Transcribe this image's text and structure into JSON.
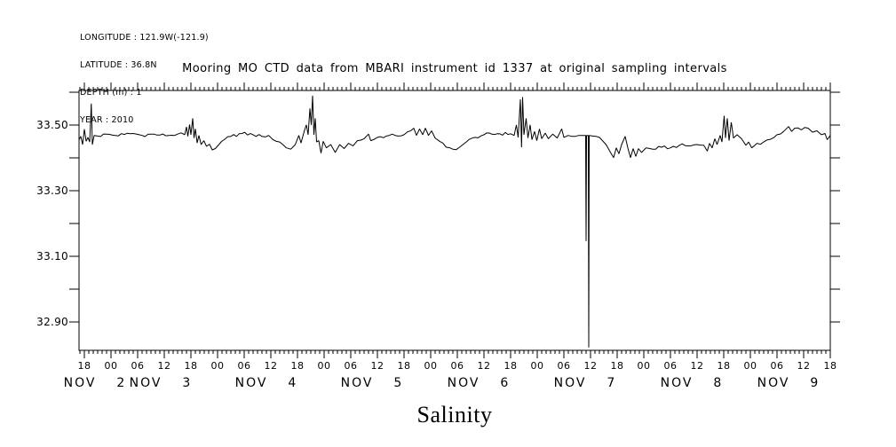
{
  "page": {
    "background": "#ffffff",
    "foreground": "#000000"
  },
  "header_info": {
    "lines": [
      "LONGITUDE : 121.9W(-121.9)",
      "LATITUDE : 36.8N",
      "DEPTH (m) : 1",
      "YEAR : 2010"
    ]
  },
  "title": "Mooring MO CTD data from MBARI instrument id 1337 at original sampling intervals",
  "bottom_label": "Salinity",
  "chart_data": {
    "type": "line",
    "title": "Mooring MO CTD data from MBARI instrument id 1337 at original sampling intervals",
    "xlabel": "Salinity",
    "ylabel": "",
    "grid": false,
    "legend": "none",
    "line_color": "#000000",
    "noise_amplitude": 0.005,
    "x_axis": {
      "unit": "hours since 2010-11-02 00:00",
      "range": [
        16.8,
        186
      ],
      "major_tick_hours": 6,
      "minor_tick_hours": 1,
      "hour_tick_labels": [
        "18",
        "00",
        "06",
        "12"
      ],
      "date_labels": [
        {
          "label": "NOV 2",
          "t": 20.4
        },
        {
          "label": "NOV 3",
          "t": 35.2
        },
        {
          "label": "NOV 4",
          "t": 59.0
        },
        {
          "label": "NOV 5",
          "t": 82.8
        },
        {
          "label": "NOV 6",
          "t": 106.8
        },
        {
          "label": "NOV 7",
          "t": 130.8
        },
        {
          "label": "NOV 8",
          "t": 154.8
        },
        {
          "label": "NOV 9",
          "t": 176.6
        }
      ]
    },
    "y_axis": {
      "range": [
        32.813,
        33.605
      ],
      "tick_step": 0.1,
      "labeled_ticks": [
        33.5,
        33.3,
        33.1,
        32.9
      ]
    },
    "series": [
      {
        "name": "Salinity",
        "points": [
          [
            16.8,
            33.455
          ],
          [
            17.2,
            33.465
          ],
          [
            17.6,
            33.44
          ],
          [
            18,
            33.487
          ],
          [
            18.4,
            33.45
          ],
          [
            18.8,
            33.462
          ],
          [
            19.2,
            33.448
          ],
          [
            19.55,
            33.565
          ],
          [
            19.8,
            33.44
          ],
          [
            20.2,
            33.468
          ],
          [
            21,
            33.466
          ],
          [
            23,
            33.472
          ],
          [
            25,
            33.468
          ],
          [
            27,
            33.471
          ],
          [
            29,
            33.474
          ],
          [
            31,
            33.468
          ],
          [
            33,
            33.472
          ],
          [
            35,
            33.469
          ],
          [
            37,
            33.468
          ],
          [
            39,
            33.472
          ],
          [
            40.6,
            33.47
          ],
          [
            41,
            33.494
          ],
          [
            41.3,
            33.465
          ],
          [
            41.7,
            33.501
          ],
          [
            42,
            33.47
          ],
          [
            42.4,
            33.52
          ],
          [
            42.7,
            33.46
          ],
          [
            43,
            33.488
          ],
          [
            43.4,
            33.445
          ],
          [
            43.8,
            33.468
          ],
          [
            44.3,
            33.44
          ],
          [
            44.9,
            33.452
          ],
          [
            45.5,
            33.435
          ],
          [
            46.2,
            33.441
          ],
          [
            46.8,
            33.424
          ],
          [
            47.5,
            33.428
          ],
          [
            48.3,
            33.44
          ],
          [
            49.5,
            33.455
          ],
          [
            51,
            33.465
          ],
          [
            53.5,
            33.474
          ],
          [
            56,
            33.47
          ],
          [
            58,
            33.465
          ],
          [
            59.5,
            33.468
          ],
          [
            60.5,
            33.455
          ],
          [
            62,
            33.448
          ],
          [
            63.5,
            33.43
          ],
          [
            64.5,
            33.426
          ],
          [
            65.5,
            33.44
          ],
          [
            66.3,
            33.468
          ],
          [
            66.8,
            33.445
          ],
          [
            67.5,
            33.48
          ],
          [
            68,
            33.5
          ],
          [
            68.4,
            33.47
          ],
          [
            68.8,
            33.55
          ],
          [
            69.1,
            33.5
          ],
          [
            69.4,
            33.589
          ],
          [
            69.7,
            33.47
          ],
          [
            70,
            33.52
          ],
          [
            70.3,
            33.448
          ],
          [
            70.8,
            33.452
          ],
          [
            71.3,
            33.414
          ],
          [
            71.8,
            33.45
          ],
          [
            72.5,
            33.43
          ],
          [
            73.5,
            33.44
          ],
          [
            74.5,
            33.416
          ],
          [
            75.5,
            33.44
          ],
          [
            76.5,
            33.428
          ],
          [
            77.5,
            33.444
          ],
          [
            78.5,
            33.436
          ],
          [
            79.5,
            33.452
          ],
          [
            81,
            33.458
          ],
          [
            82,
            33.472
          ],
          [
            82.5,
            33.452
          ],
          [
            84,
            33.462
          ],
          [
            86,
            33.466
          ],
          [
            88,
            33.468
          ],
          [
            90,
            33.47
          ],
          [
            91.5,
            33.482
          ],
          [
            92.2,
            33.49
          ],
          [
            92.8,
            33.468
          ],
          [
            93.5,
            33.488
          ],
          [
            94.2,
            33.47
          ],
          [
            94.8,
            33.49
          ],
          [
            95.5,
            33.468
          ],
          [
            96.2,
            33.482
          ],
          [
            97,
            33.46
          ],
          [
            98,
            33.45
          ],
          [
            99.5,
            33.432
          ],
          [
            101,
            33.426
          ],
          [
            102.5,
            33.432
          ],
          [
            104,
            33.448
          ],
          [
            106,
            33.462
          ],
          [
            108,
            33.47
          ],
          [
            111,
            33.473
          ],
          [
            114,
            33.473
          ],
          [
            114.8,
            33.468
          ],
          [
            115.3,
            33.5
          ],
          [
            115.7,
            33.462
          ],
          [
            116.2,
            33.578
          ],
          [
            116.45,
            33.432
          ],
          [
            116.7,
            33.585
          ],
          [
            117,
            33.47
          ],
          [
            117.5,
            33.52
          ],
          [
            117.9,
            33.46
          ],
          [
            118.4,
            33.5
          ],
          [
            118.8,
            33.455
          ],
          [
            119.4,
            33.48
          ],
          [
            119.9,
            33.452
          ],
          [
            120.5,
            33.488
          ],
          [
            121,
            33.458
          ],
          [
            121.8,
            33.475
          ],
          [
            122.5,
            33.458
          ],
          [
            123.5,
            33.472
          ],
          [
            124.5,
            33.46
          ],
          [
            125.5,
            33.488
          ],
          [
            126,
            33.462
          ],
          [
            127,
            33.468
          ],
          [
            128.5,
            33.465
          ],
          [
            130,
            33.468
          ],
          [
            130.9,
            33.468
          ],
          [
            131,
            33.146
          ],
          [
            131.1,
            33.468
          ],
          [
            131.5,
            33.468
          ],
          [
            131.6,
            32.822
          ],
          [
            131.7,
            33.468
          ],
          [
            132.5,
            33.466
          ],
          [
            134,
            33.462
          ],
          [
            135.5,
            33.44
          ],
          [
            136.5,
            33.416
          ],
          [
            137.2,
            33.4
          ],
          [
            137.8,
            33.43
          ],
          [
            138.4,
            33.412
          ],
          [
            139,
            33.44
          ],
          [
            139.8,
            33.465
          ],
          [
            140.4,
            33.43
          ],
          [
            141,
            33.4
          ],
          [
            141.6,
            33.428
          ],
          [
            142.2,
            33.404
          ],
          [
            142.8,
            33.428
          ],
          [
            143.5,
            33.416
          ],
          [
            144.5,
            33.43
          ],
          [
            146,
            33.426
          ],
          [
            148,
            33.432
          ],
          [
            150,
            33.43
          ],
          [
            152,
            33.438
          ],
          [
            154,
            33.436
          ],
          [
            156,
            33.44
          ],
          [
            157.5,
            33.438
          ],
          [
            158.3,
            33.42
          ],
          [
            158.8,
            33.444
          ],
          [
            159.4,
            33.43
          ],
          [
            160,
            33.458
          ],
          [
            160.5,
            33.44
          ],
          [
            161.2,
            33.468
          ],
          [
            161.6,
            33.448
          ],
          [
            162.1,
            33.528
          ],
          [
            162.4,
            33.46
          ],
          [
            162.8,
            33.52
          ],
          [
            163.2,
            33.452
          ],
          [
            163.7,
            33.508
          ],
          [
            164.2,
            33.46
          ],
          [
            165,
            33.47
          ],
          [
            166,
            33.458
          ],
          [
            167,
            33.438
          ],
          [
            167.6,
            33.448
          ],
          [
            168.3,
            33.43
          ],
          [
            169.5,
            33.444
          ],
          [
            171,
            33.448
          ],
          [
            172.5,
            33.456
          ],
          [
            174,
            33.47
          ],
          [
            175.5,
            33.48
          ],
          [
            176.6,
            33.495
          ],
          [
            177.3,
            33.48
          ],
          [
            178,
            33.49
          ],
          [
            179.5,
            33.485
          ],
          [
            181,
            33.49
          ],
          [
            182,
            33.478
          ],
          [
            183,
            33.482
          ],
          [
            184,
            33.47
          ],
          [
            184.8,
            33.474
          ],
          [
            185.3,
            33.455
          ],
          [
            186,
            33.468
          ]
        ]
      }
    ]
  }
}
